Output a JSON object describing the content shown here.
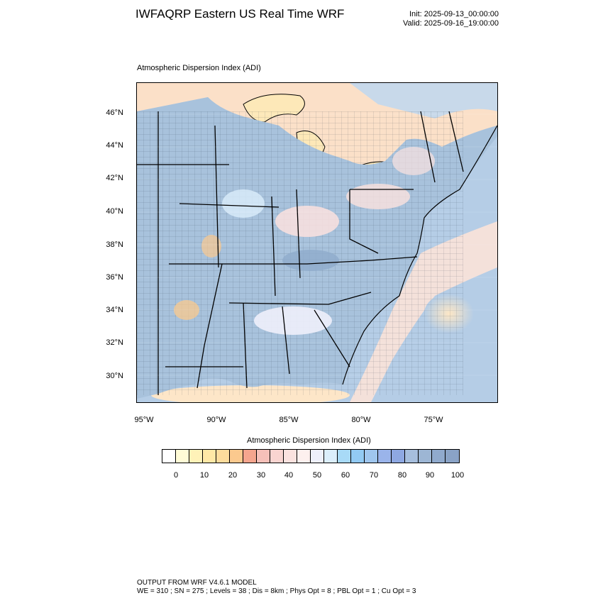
{
  "header": {
    "title": "IWFAQRP Eastern US Real Time WRF",
    "init": "Init: 2025-09-13_00:00:00",
    "valid": "Valid: 2025-09-16_19:00:00"
  },
  "map": {
    "subtitle": "Atmospheric Dispersion Index   (ADI)",
    "lat_labels": [
      "46°N",
      "44°N",
      "42°N",
      "40°N",
      "38°N",
      "36°N",
      "34°N",
      "32°N",
      "30°N"
    ],
    "lon_labels": [
      "95°W",
      "90°W",
      "85°W",
      "80°W",
      "75°W"
    ],
    "colors": {
      "land_fill": "#a8c2dc",
      "water_low": "#fde8b8",
      "water_mid": "#f3e6e6",
      "ocean": "#b5cde6",
      "boundary": "#000000"
    }
  },
  "colorbar": {
    "title": "Atmospheric Dispersion Index  (ADI)",
    "colors": [
      "#ffffff",
      "#fffbd6",
      "#fff2b8",
      "#ffe8a6",
      "#fddc9c",
      "#fbc98e",
      "#f5a58e",
      "#f6c0b9",
      "#f9d4d0",
      "#fbe2df",
      "#fdf0ee",
      "#eef0fb",
      "#dbeefb",
      "#a8daf7",
      "#92caf3",
      "#9fc6ee",
      "#9ab4ea",
      "#8ea8e2",
      "#a6bedd",
      "#9db6d4",
      "#90aacd",
      "#8aa3c6"
    ],
    "ticks": [
      "0",
      "10",
      "20",
      "30",
      "40",
      "50",
      "60",
      "70",
      "80",
      "90",
      "100"
    ]
  },
  "footer": {
    "line1": "OUTPUT FROM WRF V4.6.1 MODEL",
    "line2": "WE = 310 ; SN = 275 ; Levels = 38 ; Dis = 8km ; Phys Opt = 8 ; PBL Opt = 1 ; Cu Opt = 3"
  }
}
